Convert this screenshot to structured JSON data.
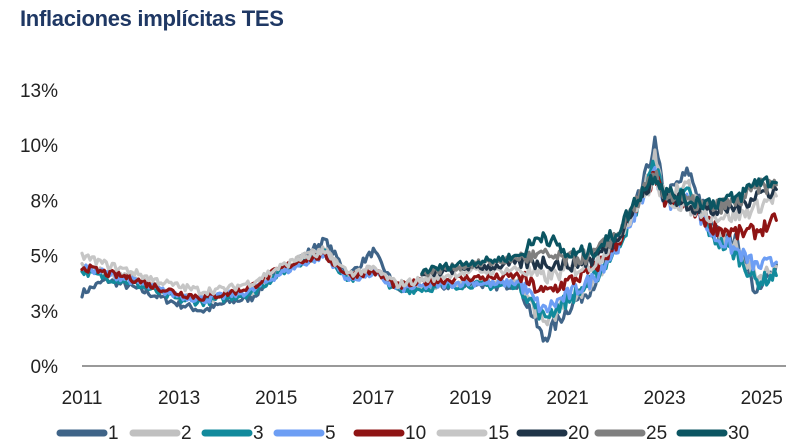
{
  "chart_data": {
    "type": "line",
    "title": "Inflaciones implícitas TES",
    "xlabel": "",
    "ylabel": "",
    "xlim": [
      2011,
      2025.5
    ],
    "ylim": [
      0,
      12.5
    ],
    "grid": false,
    "legend_position": "bottom",
    "x_ticks": [
      "2011",
      "2013",
      "2015",
      "2017",
      "2019",
      "2021",
      "2023",
      "2025"
    ],
    "x_tick_values": [
      2011,
      2013,
      2015,
      2017,
      2019,
      2021,
      2023,
      2025
    ],
    "y_ticks": [
      "0%",
      "3%",
      "5%",
      "8%",
      "10%",
      "13%"
    ],
    "y_tick_values": [
      0,
      2.5,
      5,
      7.5,
      10,
      12.5
    ],
    "colors": {
      "1": "#3f6488",
      "2": "#c0c0c0",
      "3": "#128a9c",
      "5": "#6d9ef4",
      "10": "#8f1414",
      "15": "#c6c6c6",
      "20": "#1f3448",
      "25": "#7f7f7f",
      "30": "#0b5562"
    },
    "x": [
      2011.0,
      2011.5,
      2012.0,
      2012.5,
      2013.0,
      2013.5,
      2014.0,
      2014.5,
      2015.0,
      2015.5,
      2016.0,
      2016.5,
      2017.0,
      2017.5,
      2018.0,
      2018.5,
      2019.0,
      2019.5,
      2020.0,
      2020.5,
      2021.0,
      2021.5,
      2022.0,
      2022.5,
      2022.8,
      2023.0,
      2023.5,
      2024.0,
      2024.5,
      2024.9,
      2025.3
    ],
    "series": [
      {
        "name": "1",
        "values": [
          3.3,
          3.9,
          3.6,
          3.2,
          2.8,
          2.5,
          2.9,
          3.1,
          4.2,
          4.9,
          5.7,
          4.1,
          5.2,
          3.4,
          3.5,
          3.6,
          3.8,
          3.6,
          3.7,
          1.2,
          2.6,
          3.6,
          5.3,
          7.8,
          10.1,
          7.6,
          8.8,
          6.1,
          5.6,
          3.2,
          4.6
        ]
      },
      {
        "name": "2",
        "values": [
          4.6,
          4.2,
          4.0,
          3.6,
          3.2,
          3.0,
          3.2,
          3.4,
          4.2,
          4.9,
          5.3,
          4.0,
          4.5,
          3.5,
          3.6,
          3.7,
          3.8,
          3.7,
          3.8,
          1.9,
          2.9,
          3.8,
          5.3,
          7.7,
          9.6,
          7.6,
          8.2,
          6.0,
          5.3,
          4.0,
          4.5
        ]
      },
      {
        "name": "3",
        "values": [
          4.3,
          4.0,
          3.8,
          3.4,
          3.0,
          2.9,
          3.1,
          3.3,
          4.1,
          4.7,
          5.1,
          3.9,
          4.3,
          3.4,
          3.5,
          3.6,
          3.7,
          3.6,
          3.7,
          2.2,
          3.0,
          3.8,
          5.3,
          7.5,
          9.2,
          7.5,
          7.8,
          5.8,
          5.0,
          3.8,
          4.1
        ]
      },
      {
        "name": "5",
        "values": [
          4.5,
          4.2,
          3.9,
          3.5,
          3.2,
          3.0,
          3.2,
          3.4,
          4.1,
          4.6,
          5.0,
          3.9,
          4.2,
          3.5,
          3.6,
          3.7,
          3.8,
          3.7,
          3.8,
          2.5,
          3.2,
          3.9,
          5.3,
          7.4,
          8.8,
          7.4,
          7.5,
          5.9,
          5.2,
          4.5,
          4.7
        ]
      },
      {
        "name": "10",
        "values": [
          4.5,
          4.2,
          4.0,
          3.6,
          3.3,
          3.1,
          3.3,
          3.6,
          4.3,
          4.8,
          5.0,
          4.1,
          4.3,
          3.6,
          3.8,
          3.9,
          4.0,
          4.0,
          4.1,
          3.3,
          3.8,
          4.3,
          5.5,
          7.4,
          8.6,
          7.5,
          7.3,
          6.3,
          6.0,
          6.1,
          6.6
        ]
      },
      {
        "name": "15",
        "values": [
          5.0,
          4.6,
          4.3,
          3.9,
          3.6,
          3.4,
          3.5,
          3.8,
          4.4,
          4.9,
          5.1,
          4.2,
          4.4,
          3.7,
          3.9,
          4.1,
          4.3,
          4.3,
          4.4,
          4.0,
          4.3,
          4.6,
          5.7,
          7.5,
          8.4,
          7.6,
          7.2,
          6.8,
          6.8,
          7.2,
          7.7
        ]
      },
      {
        "name": "20",
        "values": [
          null,
          null,
          null,
          null,
          null,
          null,
          null,
          null,
          null,
          null,
          null,
          null,
          null,
          null,
          4.1,
          4.3,
          4.5,
          4.5,
          4.7,
          4.7,
          4.6,
          4.8,
          5.8,
          7.6,
          8.5,
          7.7,
          7.3,
          7.0,
          7.2,
          7.8,
          8.0
        ]
      },
      {
        "name": "25",
        "values": [
          null,
          null,
          null,
          null,
          null,
          null,
          null,
          null,
          null,
          null,
          null,
          null,
          null,
          null,
          4.2,
          4.4,
          4.6,
          4.7,
          4.9,
          5.0,
          4.8,
          5.0,
          5.9,
          7.7,
          8.6,
          7.8,
          7.4,
          7.2,
          7.4,
          8.1,
          8.2
        ]
      },
      {
        "name": "30",
        "values": [
          null,
          null,
          null,
          null,
          null,
          null,
          null,
          null,
          null,
          null,
          null,
          null,
          null,
          null,
          4.3,
          4.5,
          4.7,
          4.8,
          5.0,
          6.0,
          5.0,
          5.2,
          6.0,
          7.8,
          8.7,
          7.9,
          7.5,
          7.4,
          7.6,
          8.4,
          8.3
        ]
      }
    ]
  }
}
